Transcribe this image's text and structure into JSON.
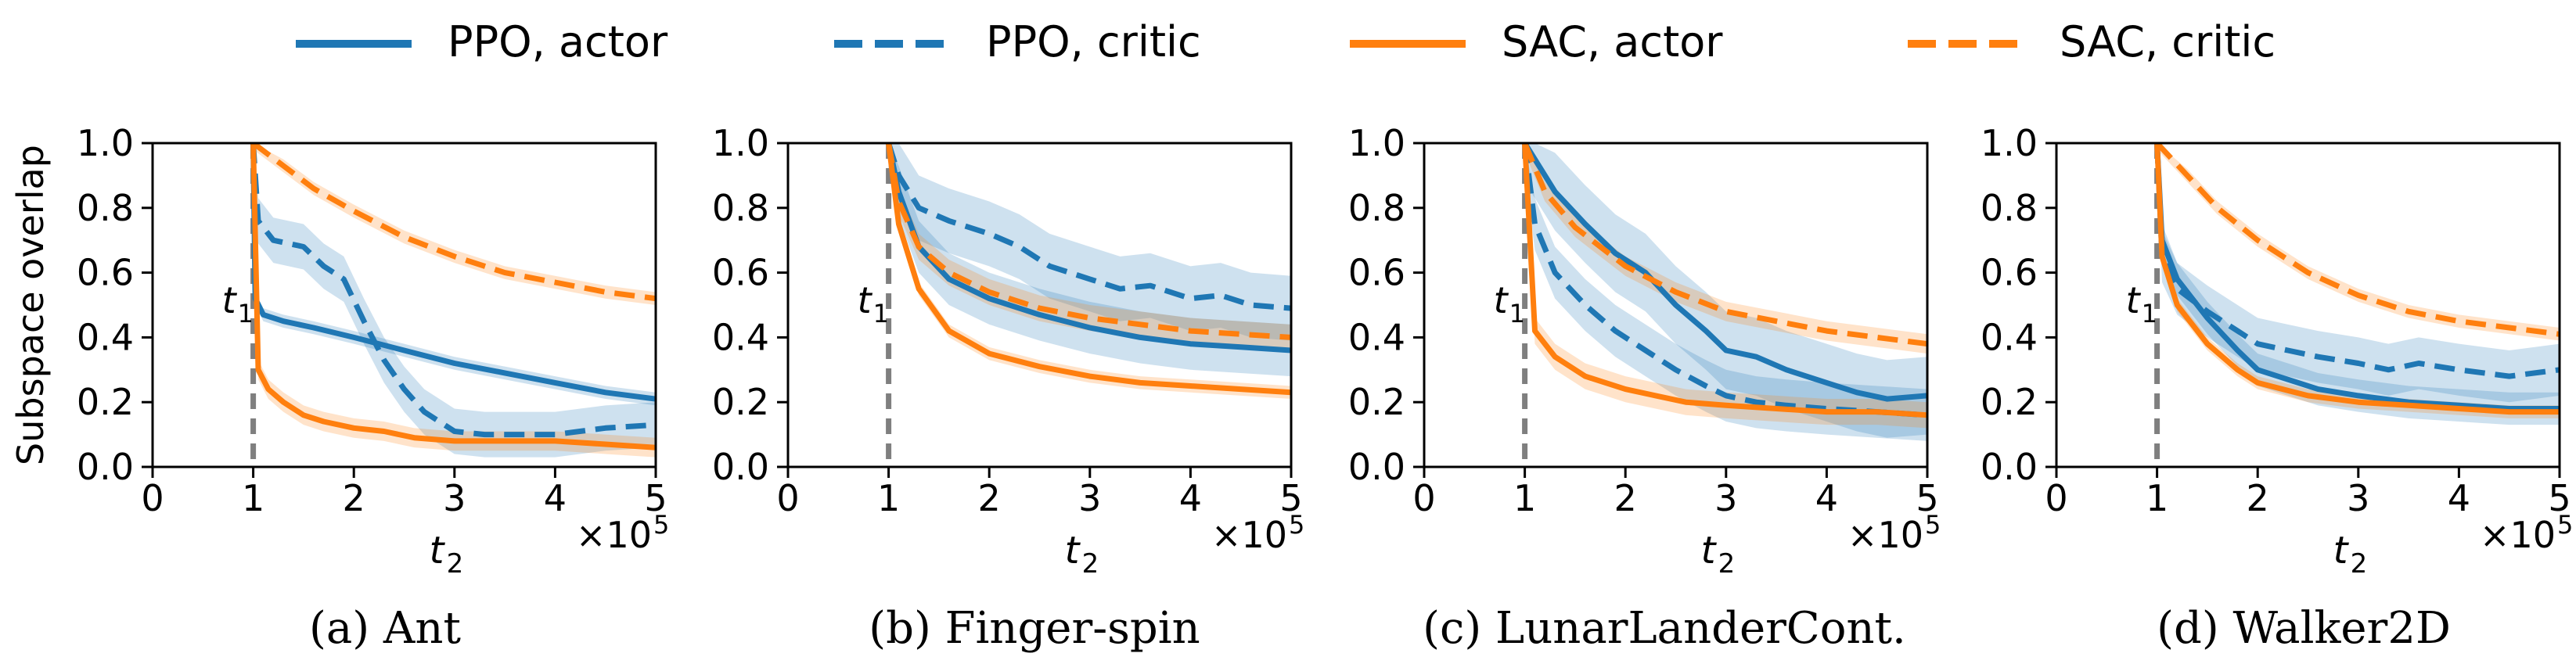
{
  "figure": {
    "legend": [
      {
        "label": "PPO, actor",
        "color": "#1f77b4",
        "style": "solid"
      },
      {
        "label": "PPO, critic",
        "color": "#1f77b4",
        "style": "dashed"
      },
      {
        "label": "SAC, actor",
        "color": "#ff7f0e",
        "style": "solid"
      },
      {
        "label": "SAC, critic",
        "color": "#ff7f0e",
        "style": "dashed"
      }
    ],
    "ylabel": "Subspace overlap",
    "xlabel_main": "t",
    "xlabel_sub": "2",
    "x_multiplier_base": "×10",
    "x_multiplier_exp": "5",
    "t1_main": "t",
    "t1_sub": "1",
    "x_ticks": [
      0,
      1,
      2,
      3,
      4,
      5
    ],
    "x_tick_labels": [
      "0",
      "1",
      "2",
      "3",
      "4",
      "5"
    ],
    "y_ticks": [
      0.0,
      0.2,
      0.4,
      0.6,
      0.8,
      1.0
    ],
    "y_tick_labels": [
      "0.0",
      "0.2",
      "0.4",
      "0.6",
      "0.8",
      "1.0"
    ],
    "colors": {
      "ppo": "#1f77b4",
      "sac": "#ff7f0e",
      "t1_marker": "#7f7f7f"
    }
  },
  "chart_data": [
    {
      "type": "line",
      "title": "(a) Ant",
      "xlabel": "t2 (×10^5)",
      "ylabel": "Subspace overlap",
      "xlim": [
        0,
        5
      ],
      "ylim": [
        0,
        1
      ],
      "t1": 1,
      "series": [
        {
          "name": "PPO, actor",
          "x": [
            1,
            1.02,
            1.1,
            1.3,
            1.6,
            2.0,
            2.5,
            3.0,
            3.5,
            4.0,
            4.5,
            5.0
          ],
          "values": [
            1.0,
            0.52,
            0.47,
            0.45,
            0.43,
            0.4,
            0.36,
            0.32,
            0.29,
            0.26,
            0.23,
            0.21
          ],
          "spread": 0.02
        },
        {
          "name": "PPO, critic",
          "x": [
            1,
            1.05,
            1.2,
            1.5,
            1.7,
            1.9,
            2.1,
            2.3,
            2.5,
            2.7,
            3.0,
            3.3,
            3.6,
            4.0,
            4.5,
            5.0
          ],
          "values": [
            1.0,
            0.76,
            0.7,
            0.68,
            0.62,
            0.58,
            0.45,
            0.33,
            0.24,
            0.17,
            0.11,
            0.1,
            0.1,
            0.1,
            0.12,
            0.13
          ],
          "spread": 0.07
        },
        {
          "name": "SAC, actor",
          "x": [
            1,
            1.05,
            1.15,
            1.3,
            1.5,
            1.7,
            2.0,
            2.3,
            2.6,
            3.0,
            3.5,
            4.0,
            4.5,
            5.0
          ],
          "values": [
            1.0,
            0.3,
            0.24,
            0.2,
            0.16,
            0.14,
            0.12,
            0.11,
            0.09,
            0.08,
            0.08,
            0.08,
            0.07,
            0.06
          ],
          "spread": 0.03
        },
        {
          "name": "SAC, critic",
          "x": [
            1,
            1.3,
            1.6,
            2.0,
            2.5,
            3.0,
            3.5,
            4.0,
            4.5,
            5.0
          ],
          "values": [
            1.0,
            0.93,
            0.86,
            0.79,
            0.71,
            0.65,
            0.6,
            0.57,
            0.54,
            0.52
          ],
          "spread": 0.02
        }
      ]
    },
    {
      "type": "line",
      "title": "(b) Finger-spin",
      "xlabel": "t2 (×10^5)",
      "ylabel": "",
      "xlim": [
        0,
        5
      ],
      "ylim": [
        0,
        1
      ],
      "t1": 1,
      "series": [
        {
          "name": "PPO, actor",
          "x": [
            1,
            1.1,
            1.3,
            1.6,
            2.0,
            2.5,
            3.0,
            3.5,
            4.0,
            4.5,
            5.0
          ],
          "values": [
            1.0,
            0.85,
            0.68,
            0.58,
            0.52,
            0.47,
            0.43,
            0.4,
            0.38,
            0.37,
            0.36
          ],
          "spread": 0.08
        },
        {
          "name": "PPO, critic",
          "x": [
            1,
            1.1,
            1.3,
            1.6,
            2.0,
            2.3,
            2.6,
            3.0,
            3.3,
            3.6,
            4.0,
            4.3,
            4.6,
            5.0
          ],
          "values": [
            1.0,
            0.9,
            0.8,
            0.76,
            0.72,
            0.68,
            0.62,
            0.58,
            0.55,
            0.56,
            0.52,
            0.53,
            0.5,
            0.49
          ],
          "spread": 0.1
        },
        {
          "name": "SAC, actor",
          "x": [
            1,
            1.1,
            1.3,
            1.6,
            2.0,
            2.5,
            3.0,
            3.5,
            4.0,
            4.5,
            5.0
          ],
          "values": [
            1.0,
            0.75,
            0.55,
            0.42,
            0.35,
            0.31,
            0.28,
            0.26,
            0.25,
            0.24,
            0.23
          ],
          "spread": 0.02
        },
        {
          "name": "SAC, critic",
          "x": [
            1,
            1.1,
            1.3,
            1.6,
            2.0,
            2.5,
            3.0,
            3.5,
            4.0,
            4.5,
            5.0
          ],
          "values": [
            1.0,
            0.82,
            0.68,
            0.6,
            0.54,
            0.49,
            0.46,
            0.44,
            0.42,
            0.41,
            0.4
          ],
          "spread": 0.04
        }
      ]
    },
    {
      "type": "line",
      "title": "(c) LunarLanderCont.",
      "xlabel": "t2 (×10^5)",
      "ylabel": "",
      "xlim": [
        0,
        5
      ],
      "ylim": [
        0,
        1
      ],
      "t1": 1,
      "series": [
        {
          "name": "PPO, actor",
          "x": [
            1,
            1.1,
            1.3,
            1.6,
            1.9,
            2.2,
            2.5,
            2.8,
            3.0,
            3.3,
            3.6,
            4.0,
            4.3,
            4.6,
            5.0
          ],
          "values": [
            1.0,
            0.95,
            0.85,
            0.75,
            0.66,
            0.6,
            0.5,
            0.42,
            0.36,
            0.34,
            0.3,
            0.26,
            0.23,
            0.21,
            0.22
          ],
          "spread": 0.12
        },
        {
          "name": "PPO, critic",
          "x": [
            1,
            1.1,
            1.3,
            1.6,
            1.9,
            2.2,
            2.5,
            2.8,
            3.0,
            3.3,
            3.6,
            4.0,
            4.5,
            5.0
          ],
          "values": [
            1.0,
            0.75,
            0.6,
            0.5,
            0.42,
            0.36,
            0.3,
            0.25,
            0.22,
            0.2,
            0.19,
            0.18,
            0.17,
            0.16
          ],
          "spread": 0.08
        },
        {
          "name": "SAC, actor",
          "x": [
            1,
            1.1,
            1.3,
            1.6,
            2.0,
            2.3,
            2.6,
            3.0,
            3.5,
            4.0,
            4.5,
            5.0
          ],
          "values": [
            1.0,
            0.42,
            0.34,
            0.28,
            0.24,
            0.22,
            0.2,
            0.19,
            0.18,
            0.17,
            0.17,
            0.16
          ],
          "spread": 0.04
        },
        {
          "name": "SAC, critic",
          "x": [
            1,
            1.2,
            1.5,
            2.0,
            2.5,
            3.0,
            3.5,
            4.0,
            4.5,
            5.0
          ],
          "values": [
            1.0,
            0.85,
            0.74,
            0.62,
            0.54,
            0.48,
            0.45,
            0.42,
            0.4,
            0.38
          ],
          "spread": 0.03
        }
      ]
    },
    {
      "type": "line",
      "title": "(d) Walker2D",
      "xlabel": "t2 (×10^5)",
      "ylabel": "",
      "xlim": [
        0,
        5
      ],
      "ylim": [
        0,
        1
      ],
      "t1": 1,
      "series": [
        {
          "name": "PPO, actor",
          "x": [
            1,
            1.05,
            1.2,
            1.5,
            1.8,
            2.0,
            2.3,
            2.6,
            3.0,
            3.5,
            4.0,
            4.5,
            5.0
          ],
          "values": [
            1.0,
            0.7,
            0.58,
            0.46,
            0.36,
            0.3,
            0.27,
            0.24,
            0.22,
            0.2,
            0.19,
            0.18,
            0.18
          ],
          "spread": 0.05
        },
        {
          "name": "PPO, critic",
          "x": [
            1,
            1.05,
            1.2,
            1.5,
            1.8,
            2.0,
            2.3,
            2.6,
            3.0,
            3.3,
            3.6,
            4.0,
            4.5,
            5.0
          ],
          "values": [
            1.0,
            0.65,
            0.55,
            0.48,
            0.42,
            0.38,
            0.36,
            0.34,
            0.32,
            0.3,
            0.32,
            0.3,
            0.28,
            0.3
          ],
          "spread": 0.08
        },
        {
          "name": "SAC, actor",
          "x": [
            1,
            1.05,
            1.2,
            1.5,
            1.8,
            2.0,
            2.5,
            3.0,
            3.5,
            4.0,
            4.5,
            5.0
          ],
          "values": [
            1.0,
            0.65,
            0.5,
            0.38,
            0.3,
            0.26,
            0.22,
            0.2,
            0.19,
            0.18,
            0.17,
            0.17
          ],
          "spread": 0.02
        },
        {
          "name": "SAC, critic",
          "x": [
            1,
            1.3,
            1.6,
            2.0,
            2.5,
            3.0,
            3.5,
            4.0,
            4.5,
            5.0
          ],
          "values": [
            1.0,
            0.9,
            0.8,
            0.7,
            0.6,
            0.53,
            0.48,
            0.45,
            0.43,
            0.41
          ],
          "spread": 0.02
        }
      ]
    }
  ]
}
